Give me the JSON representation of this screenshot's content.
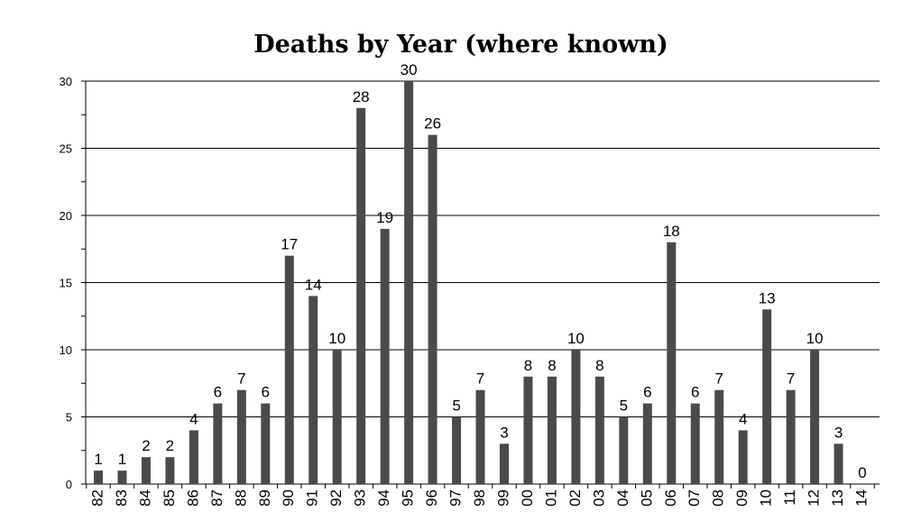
{
  "chart_data": {
    "type": "bar",
    "title": "Deaths by Year (where known)",
    "xlabel": "",
    "ylabel": "",
    "categories": [
      "82",
      "83",
      "84",
      "85",
      "86",
      "87",
      "88",
      "89",
      "90",
      "91",
      "92",
      "93",
      "94",
      "95",
      "96",
      "97",
      "98",
      "99",
      "00",
      "01",
      "02",
      "03",
      "04",
      "05",
      "06",
      "07",
      "08",
      "09",
      "10",
      "11",
      "12",
      "13",
      "14"
    ],
    "values": [
      1,
      1,
      2,
      2,
      4,
      6,
      7,
      6,
      17,
      14,
      10,
      28,
      19,
      30,
      26,
      5,
      7,
      3,
      8,
      8,
      10,
      8,
      5,
      6,
      18,
      6,
      7,
      4,
      13,
      7,
      10,
      3,
      0
    ],
    "ylim": [
      0,
      30
    ],
    "yticks": [
      0,
      5,
      10,
      15,
      20,
      25,
      30
    ],
    "grid": true,
    "bar_color": "#4a4a4a",
    "data_labels": true,
    "x_tick_rotation": "vertical"
  }
}
